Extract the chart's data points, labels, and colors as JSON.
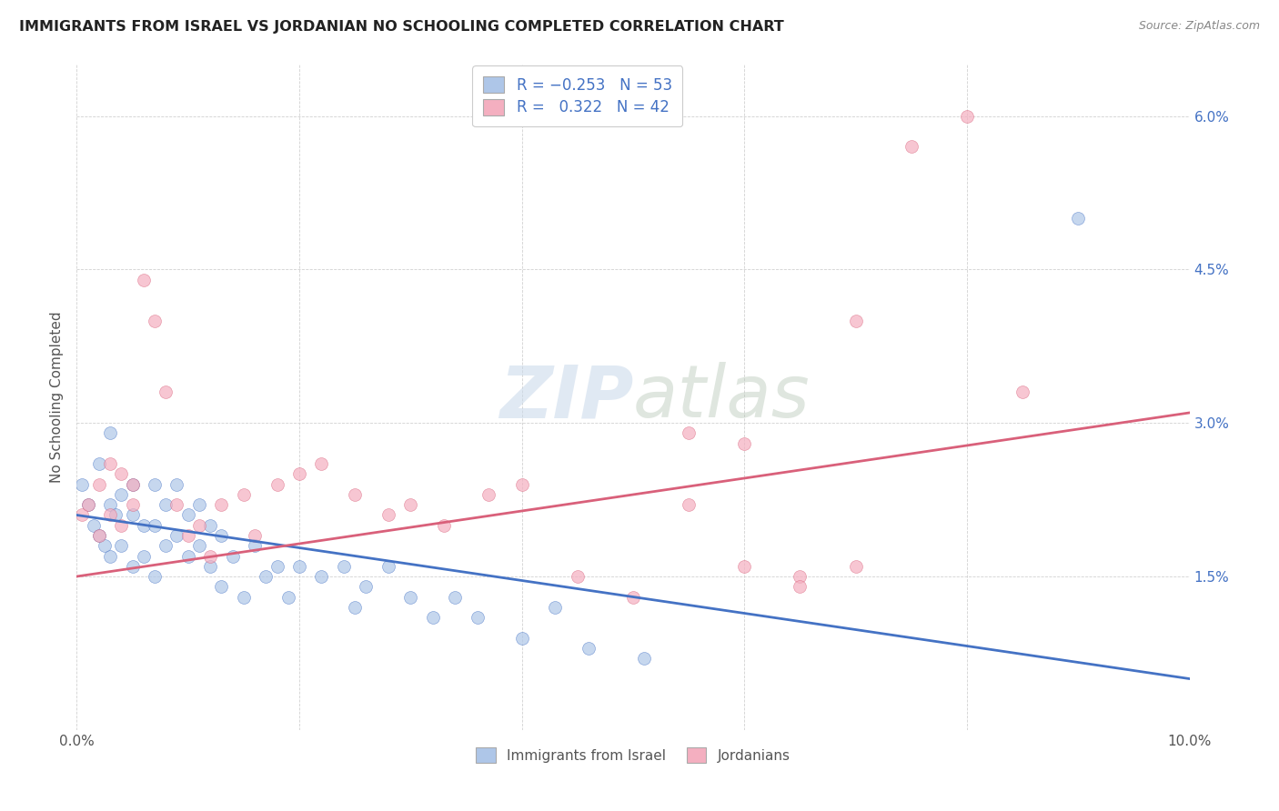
{
  "title": "IMMIGRANTS FROM ISRAEL VS JORDANIAN NO SCHOOLING COMPLETED CORRELATION CHART",
  "source": "Source: ZipAtlas.com",
  "ylabel": "No Schooling Completed",
  "xlim": [
    0.0,
    0.1
  ],
  "ylim": [
    0.0,
    0.065
  ],
  "xticks": [
    0.0,
    0.02,
    0.04,
    0.06,
    0.08,
    0.1
  ],
  "xticklabels": [
    "0.0%",
    "",
    "",
    "",
    "",
    "10.0%"
  ],
  "yticks": [
    0.0,
    0.015,
    0.03,
    0.045,
    0.06
  ],
  "yticklabels": [
    "",
    "1.5%",
    "3.0%",
    "4.5%",
    "6.0%"
  ],
  "blue_color": "#aec6e8",
  "pink_color": "#f4afc0",
  "blue_line_color": "#4472c4",
  "pink_line_color": "#d9607a",
  "watermark_text": "ZIPatlas",
  "blue_trend": [
    0.021,
    0.005
  ],
  "pink_trend": [
    0.015,
    0.031
  ],
  "blue_scatter_x": [
    0.0005,
    0.001,
    0.0015,
    0.002,
    0.002,
    0.0025,
    0.003,
    0.003,
    0.003,
    0.0035,
    0.004,
    0.004,
    0.005,
    0.005,
    0.005,
    0.006,
    0.006,
    0.007,
    0.007,
    0.007,
    0.008,
    0.008,
    0.009,
    0.009,
    0.01,
    0.01,
    0.011,
    0.011,
    0.012,
    0.012,
    0.013,
    0.013,
    0.014,
    0.015,
    0.016,
    0.017,
    0.018,
    0.019,
    0.02,
    0.022,
    0.024,
    0.025,
    0.026,
    0.028,
    0.03,
    0.032,
    0.034,
    0.036,
    0.04,
    0.043,
    0.046,
    0.051,
    0.09
  ],
  "blue_scatter_y": [
    0.024,
    0.022,
    0.02,
    0.019,
    0.026,
    0.018,
    0.029,
    0.022,
    0.017,
    0.021,
    0.023,
    0.018,
    0.024,
    0.021,
    0.016,
    0.02,
    0.017,
    0.024,
    0.02,
    0.015,
    0.022,
    0.018,
    0.024,
    0.019,
    0.021,
    0.017,
    0.022,
    0.018,
    0.02,
    0.016,
    0.019,
    0.014,
    0.017,
    0.013,
    0.018,
    0.015,
    0.016,
    0.013,
    0.016,
    0.015,
    0.016,
    0.012,
    0.014,
    0.016,
    0.013,
    0.011,
    0.013,
    0.011,
    0.009,
    0.012,
    0.008,
    0.007,
    0.05
  ],
  "pink_scatter_x": [
    0.0005,
    0.001,
    0.002,
    0.002,
    0.003,
    0.003,
    0.004,
    0.004,
    0.005,
    0.005,
    0.006,
    0.007,
    0.008,
    0.009,
    0.01,
    0.011,
    0.012,
    0.013,
    0.015,
    0.016,
    0.018,
    0.02,
    0.022,
    0.025,
    0.028,
    0.03,
    0.033,
    0.037,
    0.04,
    0.045,
    0.05,
    0.055,
    0.06,
    0.065,
    0.07,
    0.075,
    0.08,
    0.085,
    0.055,
    0.06,
    0.065,
    0.07
  ],
  "pink_scatter_y": [
    0.021,
    0.022,
    0.024,
    0.019,
    0.026,
    0.021,
    0.025,
    0.02,
    0.024,
    0.022,
    0.044,
    0.04,
    0.033,
    0.022,
    0.019,
    0.02,
    0.017,
    0.022,
    0.023,
    0.019,
    0.024,
    0.025,
    0.026,
    0.023,
    0.021,
    0.022,
    0.02,
    0.023,
    0.024,
    0.015,
    0.013,
    0.022,
    0.016,
    0.015,
    0.016,
    0.057,
    0.06,
    0.033,
    0.029,
    0.028,
    0.014,
    0.04
  ]
}
